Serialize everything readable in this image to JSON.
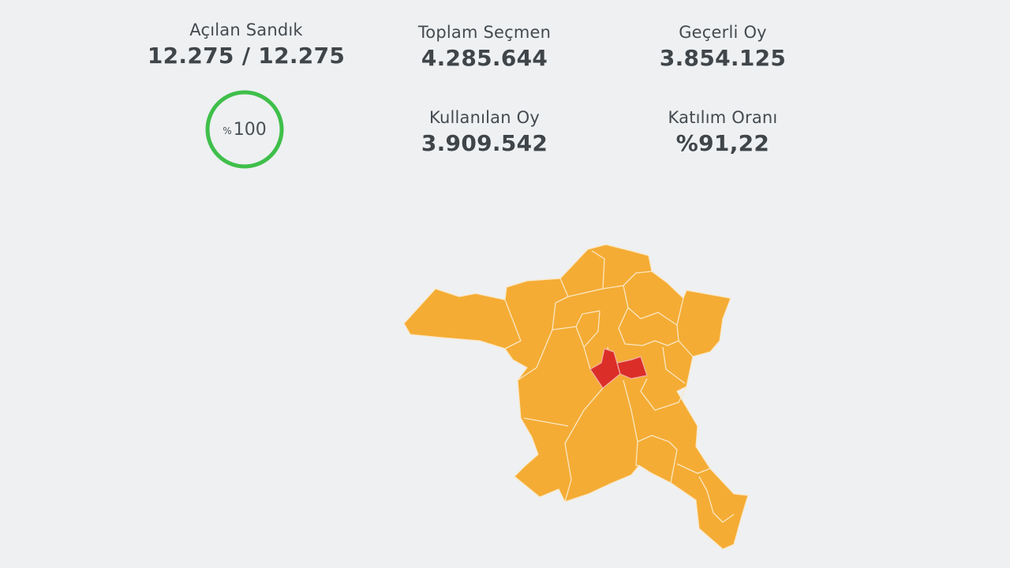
{
  "opened_boxes": {
    "label": "Açılan Sandık",
    "value": "12.275 / 12.275",
    "percent_symbol": "%",
    "percent_text": "100",
    "percent": 100
  },
  "total_voters": {
    "label": "Toplam Seçmen",
    "value": "4.285.644"
  },
  "valid_votes": {
    "label": "Geçerli Oy",
    "value": "3.854.125"
  },
  "used_votes": {
    "label": "Kullanılan Oy",
    "value": "3.909.542"
  },
  "turnout": {
    "label": "Katılım Oranı",
    "value": "%91,22"
  },
  "colors": {
    "background": "#eef0f2",
    "ring": "#3fbf4a",
    "party_primary": "#f4ac35",
    "party_secondary": "#dc2e29"
  }
}
